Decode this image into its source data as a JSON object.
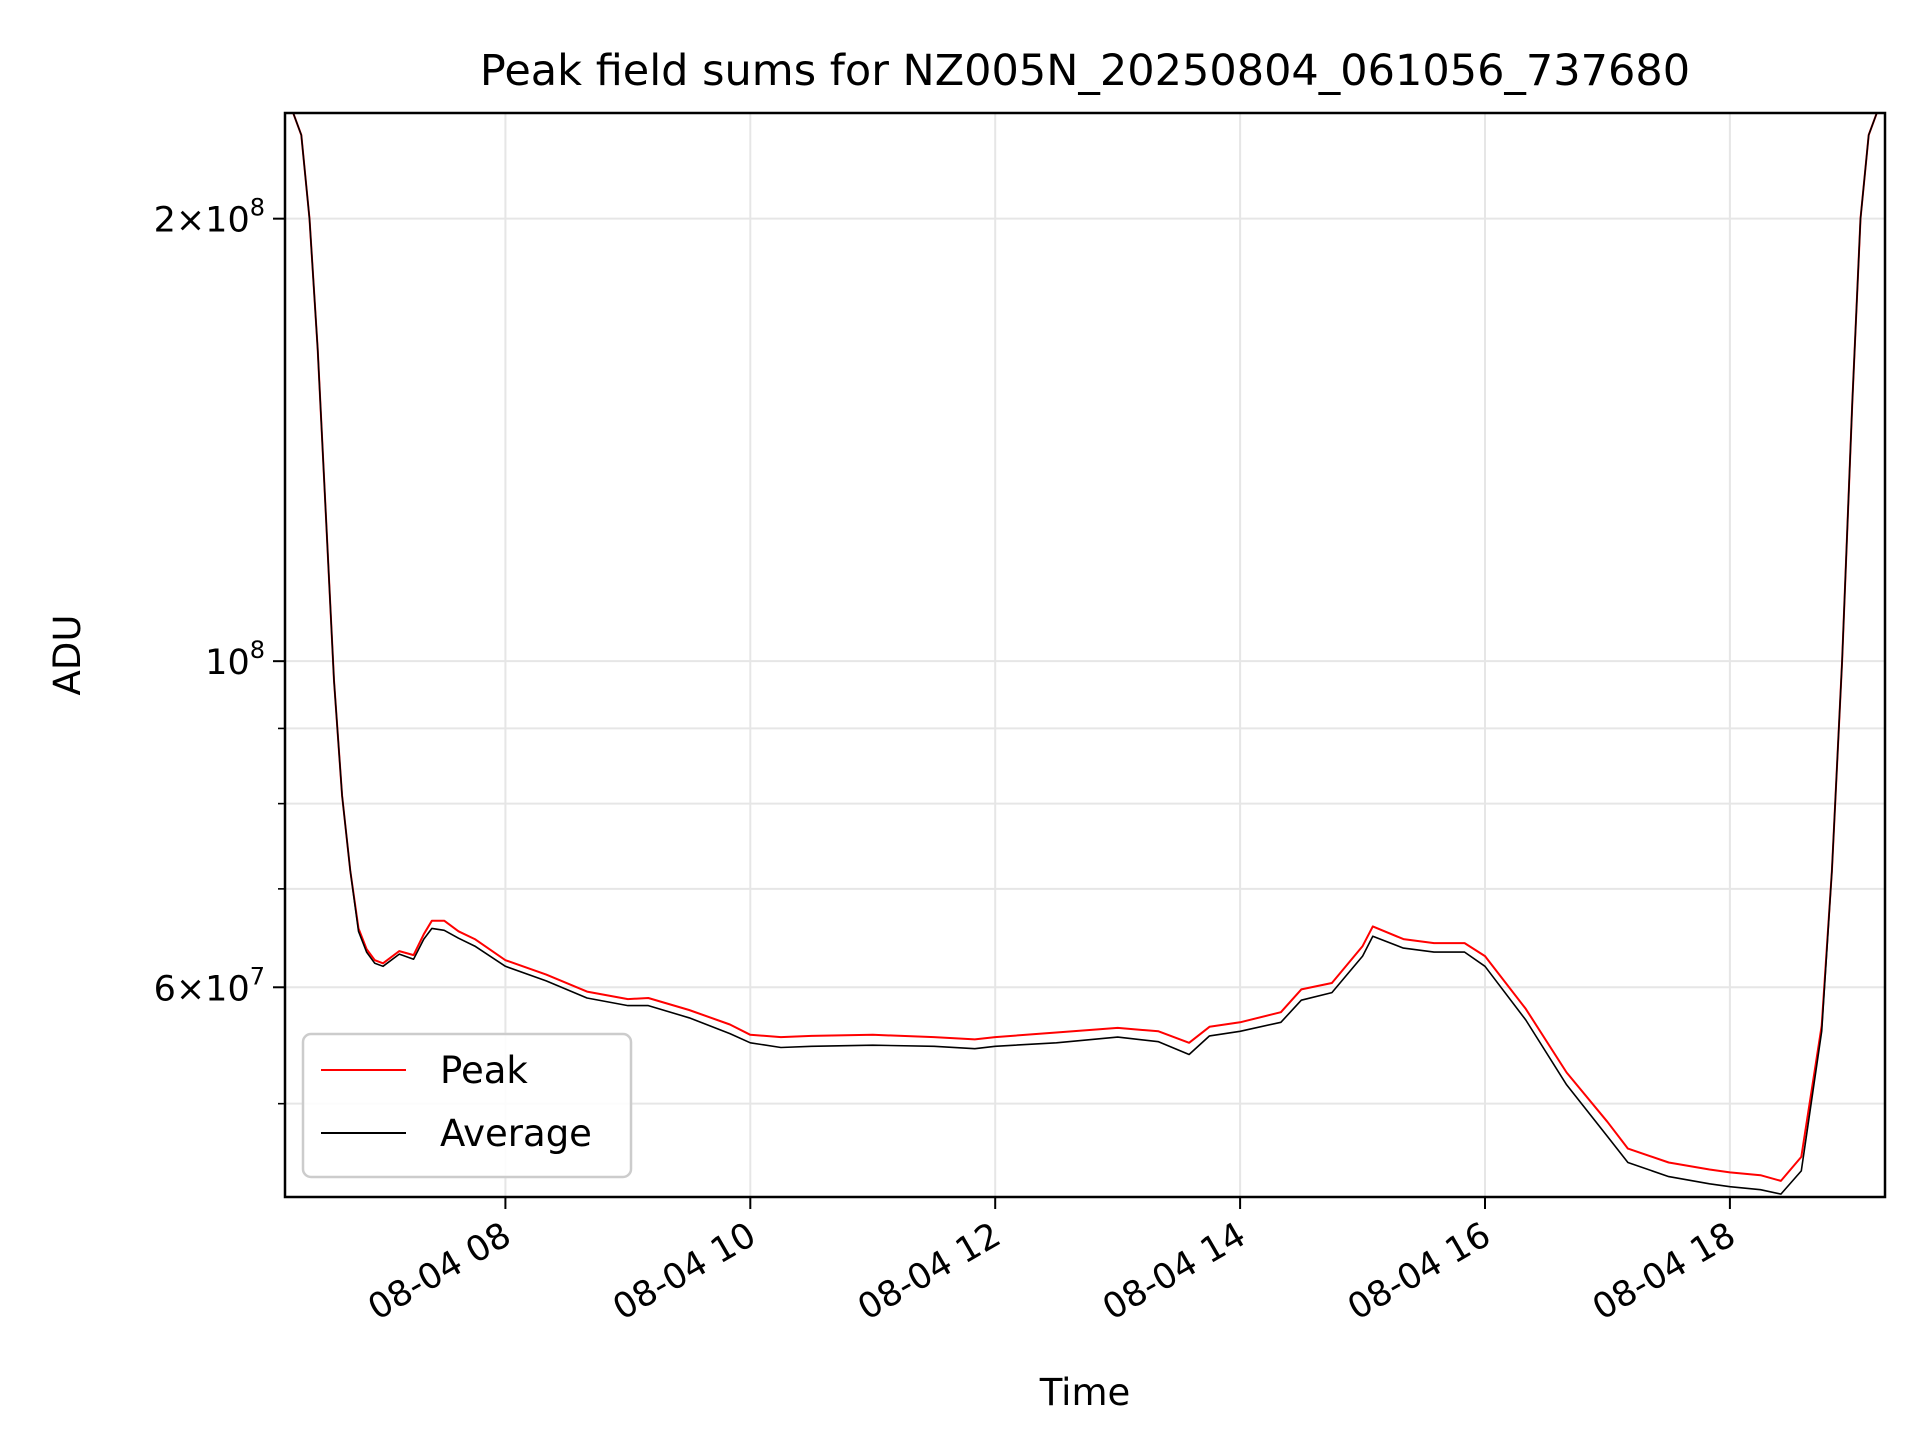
{
  "chart_data": {
    "type": "line",
    "title": "Peak field sums for NZ005N_20250804_061056_737680",
    "xlabel": "Time",
    "ylabel": "ADU",
    "y_scale": "log",
    "xlim": [
      "2025-08-04 06:12",
      "2025-08-04 19:16"
    ],
    "ylim": [
      43200000,
      236000000
    ],
    "grid": true,
    "legend_position": "lower-left",
    "x_ticks": [
      {
        "value": "2025-08-04 08:00",
        "label": "08-04 08"
      },
      {
        "value": "2025-08-04 10:00",
        "label": "08-04 10"
      },
      {
        "value": "2025-08-04 12:00",
        "label": "08-04 12"
      },
      {
        "value": "2025-08-04 14:00",
        "label": "08-04 14"
      },
      {
        "value": "2025-08-04 16:00",
        "label": "08-04 16"
      },
      {
        "value": "2025-08-04 18:00",
        "label": "08-04 18"
      }
    ],
    "y_major_ticks": [
      {
        "value": 60000000,
        "label_mantissa": "6",
        "label_times": "×",
        "label_base": "10",
        "label_exp": "7"
      },
      {
        "value": 100000000,
        "label_mantissa": "",
        "label_times": "",
        "label_base": "10",
        "label_exp": "8"
      },
      {
        "value": 200000000,
        "label_mantissa": "2",
        "label_times": "×",
        "label_base": "10",
        "label_exp": "8"
      }
    ],
    "y_minor_ticks": [
      50000000,
      70000000,
      80000000,
      90000000
    ],
    "series": [
      {
        "name": "Average",
        "color": "#000000",
        "x": [
          "2025-08-04 06:12",
          "2025-08-04 06:16",
          "2025-08-04 06:20",
          "2025-08-04 06:24",
          "2025-08-04 06:28",
          "2025-08-04 06:32",
          "2025-08-04 06:36",
          "2025-08-04 06:40",
          "2025-08-04 06:44",
          "2025-08-04 06:48",
          "2025-08-04 06:52",
          "2025-08-04 06:56",
          "2025-08-04 07:00",
          "2025-08-04 07:08",
          "2025-08-04 07:15",
          "2025-08-04 07:20",
          "2025-08-04 07:24",
          "2025-08-04 07:30",
          "2025-08-04 07:37",
          "2025-08-04 07:45",
          "2025-08-04 08:00",
          "2025-08-04 08:20",
          "2025-08-04 08:40",
          "2025-08-04 09:00",
          "2025-08-04 09:10",
          "2025-08-04 09:30",
          "2025-08-04 09:50",
          "2025-08-04 10:00",
          "2025-08-04 10:15",
          "2025-08-04 10:30",
          "2025-08-04 11:00",
          "2025-08-04 11:30",
          "2025-08-04 11:50",
          "2025-08-04 12:00",
          "2025-08-04 12:30",
          "2025-08-04 13:00",
          "2025-08-04 13:20",
          "2025-08-04 13:35",
          "2025-08-04 13:45",
          "2025-08-04 14:00",
          "2025-08-04 14:20",
          "2025-08-04 14:30",
          "2025-08-04 14:45",
          "2025-08-04 15:00",
          "2025-08-04 15:05",
          "2025-08-04 15:20",
          "2025-08-04 15:35",
          "2025-08-04 15:50",
          "2025-08-04 16:00",
          "2025-08-04 16:20",
          "2025-08-04 16:40",
          "2025-08-04 17:00",
          "2025-08-04 17:10",
          "2025-08-04 17:30",
          "2025-08-04 17:50",
          "2025-08-04 18:00",
          "2025-08-04 18:15",
          "2025-08-04 18:25",
          "2025-08-04 18:35",
          "2025-08-04 18:45",
          "2025-08-04 18:50",
          "2025-08-04 18:55",
          "2025-08-04 19:00",
          "2025-08-04 19:04",
          "2025-08-04 19:08",
          "2025-08-04 19:12",
          "2025-08-04 19:16"
        ],
        "values": [
          236000000,
          236000000,
          228000000,
          200000000,
          163000000,
          126000000,
          97000000,
          81000000,
          72000000,
          65500000,
          63400000,
          62300000,
          62000000,
          63200000,
          62700000,
          64700000,
          65800000,
          65600000,
          64800000,
          64000000,
          62000000,
          60600000,
          59000000,
          58300000,
          58300000,
          57200000,
          55800000,
          55000000,
          54600000,
          54700000,
          54800000,
          54700000,
          54500000,
          54700000,
          55000000,
          55500000,
          55100000,
          54000000,
          55600000,
          56000000,
          56800000,
          58800000,
          59500000,
          63000000,
          65000000,
          63800000,
          63400000,
          63400000,
          62000000,
          57000000,
          51500000,
          47500000,
          45600000,
          44600000,
          44100000,
          43900000,
          43700000,
          43400000,
          45000000,
          56000000,
          72000000,
          100000000,
          150000000,
          200000000,
          228000000,
          236000000,
          236000000
        ]
      },
      {
        "name": "Peak",
        "color": "#ff0000",
        "x": [
          "2025-08-04 06:12",
          "2025-08-04 06:16",
          "2025-08-04 06:20",
          "2025-08-04 06:24",
          "2025-08-04 06:28",
          "2025-08-04 06:32",
          "2025-08-04 06:36",
          "2025-08-04 06:40",
          "2025-08-04 06:44",
          "2025-08-04 06:48",
          "2025-08-04 06:52",
          "2025-08-04 06:56",
          "2025-08-04 07:00",
          "2025-08-04 07:08",
          "2025-08-04 07:15",
          "2025-08-04 07:20",
          "2025-08-04 07:24",
          "2025-08-04 07:30",
          "2025-08-04 07:37",
          "2025-08-04 07:45",
          "2025-08-04 08:00",
          "2025-08-04 08:20",
          "2025-08-04 08:40",
          "2025-08-04 09:00",
          "2025-08-04 09:10",
          "2025-08-04 09:30",
          "2025-08-04 09:50",
          "2025-08-04 10:00",
          "2025-08-04 10:15",
          "2025-08-04 10:30",
          "2025-08-04 11:00",
          "2025-08-04 11:30",
          "2025-08-04 11:50",
          "2025-08-04 12:00",
          "2025-08-04 12:30",
          "2025-08-04 13:00",
          "2025-08-04 13:20",
          "2025-08-04 13:35",
          "2025-08-04 13:45",
          "2025-08-04 14:00",
          "2025-08-04 14:20",
          "2025-08-04 14:30",
          "2025-08-04 14:45",
          "2025-08-04 15:00",
          "2025-08-04 15:05",
          "2025-08-04 15:20",
          "2025-08-04 15:35",
          "2025-08-04 15:50",
          "2025-08-04 16:00",
          "2025-08-04 16:20",
          "2025-08-04 16:40",
          "2025-08-04 17:00",
          "2025-08-04 17:10",
          "2025-08-04 17:30",
          "2025-08-04 17:50",
          "2025-08-04 18:00",
          "2025-08-04 18:15",
          "2025-08-04 18:25",
          "2025-08-04 18:35",
          "2025-08-04 18:45",
          "2025-08-04 18:50",
          "2025-08-04 18:55",
          "2025-08-04 19:00",
          "2025-08-04 19:04",
          "2025-08-04 19:08",
          "2025-08-04 19:12",
          "2025-08-04 19:16"
        ],
        "values": [
          236000000,
          236000000,
          228000000,
          200000000,
          163000000,
          126000000,
          97000000,
          81000000,
          72000000,
          65800000,
          63700000,
          62600000,
          62300000,
          63500000,
          63100000,
          65200000,
          66600000,
          66600000,
          65500000,
          64700000,
          62600000,
          61200000,
          59600000,
          58900000,
          59000000,
          57900000,
          56600000,
          55700000,
          55500000,
          55600000,
          55700000,
          55500000,
          55300000,
          55500000,
          55900000,
          56300000,
          56000000,
          55000000,
          56400000,
          56800000,
          57700000,
          59800000,
          60400000,
          64000000,
          66000000,
          64700000,
          64300000,
          64300000,
          63000000,
          58000000,
          52500000,
          48600000,
          46600000,
          45600000,
          45100000,
          44900000,
          44700000,
          44300000,
          46000000,
          56500000,
          72000000,
          100000000,
          150000000,
          200000000,
          228000000,
          236000000,
          236000000
        ]
      }
    ],
    "legend": [
      {
        "label": "Peak",
        "color": "#ff0000"
      },
      {
        "label": "Average",
        "color": "#000000"
      }
    ]
  }
}
